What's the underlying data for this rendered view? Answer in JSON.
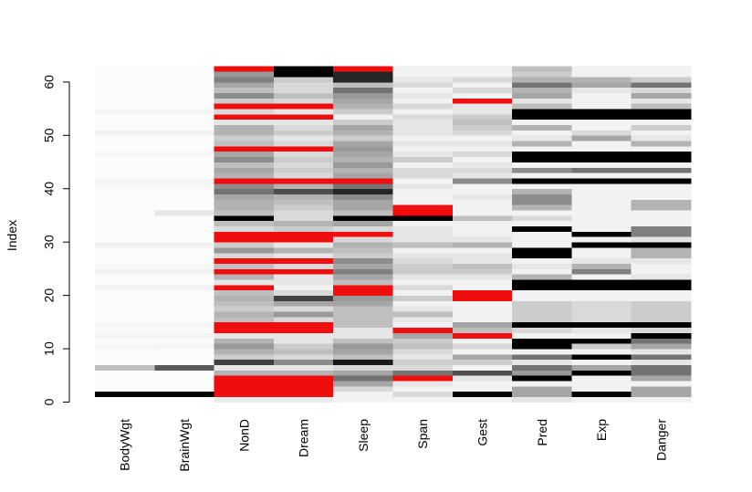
{
  "chart_data": {
    "type": "heatmap",
    "title": "",
    "xlabel": "",
    "ylabel": "Index",
    "ylim": [
      0,
      62
    ],
    "yticks": [
      0,
      10,
      20,
      30,
      40,
      50,
      60
    ],
    "variables": [
      "BodyWgt",
      "BrainWgt",
      "NonD",
      "Dream",
      "Sleep",
      "Span",
      "Gest",
      "Pred",
      "Exp",
      "Danger"
    ],
    "color_scale": {
      "low": "#ffffff",
      "high": "#000000",
      "missing": "#f00d0d",
      "description": "grayscale from low (white) to high (black); red marks missing values"
    },
    "rows": [
      [
        0.0,
        0.0,
        0.08,
        0.08,
        0.05,
        0.05,
        0.05,
        0.1,
        0.05,
        0.05
      ],
      [
        1.0,
        1.0,
        "NA",
        "NA",
        0.05,
        0.15,
        1.0,
        0.35,
        1.0,
        0.35
      ],
      [
        0.01,
        0.01,
        "NA",
        "NA",
        0.15,
        0.05,
        0.05,
        0.35,
        0.05,
        0.35
      ],
      [
        0.01,
        0.01,
        "NA",
        "NA",
        0.35,
        0.1,
        0.05,
        0.05,
        0.05,
        0.05
      ],
      [
        0.01,
        0.01,
        "NA",
        "NA",
        0.55,
        "NA",
        0.1,
        1.0,
        0.05,
        0.35
      ],
      [
        0.01,
        0.01,
        0.3,
        0.3,
        0.35,
        0.55,
        0.7,
        0.4,
        1.0,
        0.55
      ],
      [
        0.25,
        0.65,
        0.1,
        0.1,
        0.15,
        0.15,
        0.05,
        0.55,
        0.35,
        0.55
      ],
      [
        0.01,
        0.01,
        0.75,
        0.45,
        0.9,
        0.2,
        0.2,
        0.1,
        0.05,
        0.1
      ],
      [
        0.01,
        0.01,
        0.2,
        0.15,
        0.25,
        0.1,
        0.35,
        0.55,
        1.0,
        0.55
      ],
      [
        0.01,
        0.01,
        0.3,
        0.25,
        0.35,
        0.15,
        0.05,
        0.05,
        0.05,
        0.1
      ],
      [
        0.03,
        0.04,
        0.4,
        0.2,
        0.4,
        0.25,
        0.15,
        1.0,
        0.2,
        0.35
      ],
      [
        0.01,
        0.01,
        0.3,
        0.1,
        0.25,
        0.2,
        0.05,
        1.0,
        1.0,
        0.55
      ],
      [
        0.04,
        0.04,
        0.1,
        0.1,
        0.1,
        0.35,
        "NA",
        0.05,
        0.05,
        1.0
      ],
      [
        0.02,
        0.02,
        "NA",
        "NA",
        0.1,
        "NA",
        0.25,
        0.15,
        0.1,
        0.15
      ],
      [
        0.04,
        0.04,
        "NA",
        "NA",
        0.25,
        0.05,
        0.35,
        1.0,
        1.0,
        1.0
      ],
      [
        0.01,
        0.01,
        0.25,
        0.15,
        0.25,
        0.1,
        0.05,
        0.2,
        0.15,
        0.2
      ],
      [
        0.01,
        0.01,
        0.3,
        0.4,
        0.25,
        0.25,
        0.05,
        0.2,
        0.15,
        0.2
      ],
      [
        0.01,
        0.01,
        0.2,
        0.15,
        0.25,
        0.1,
        0.05,
        0.2,
        0.15,
        0.2
      ],
      [
        0.02,
        0.02,
        0.25,
        0.35,
        0.35,
        0.05,
        0.05,
        0.2,
        0.15,
        0.2
      ],
      [
        0.01,
        0.01,
        0.3,
        0.75,
        0.4,
        0.2,
        "NA",
        0.05,
        0.05,
        0.05
      ],
      [
        0.01,
        0.01,
        0.25,
        0.15,
        "NA",
        0.05,
        "NA",
        0.05,
        0.05,
        0.05
      ],
      [
        0.05,
        0.05,
        "NA",
        0.05,
        "NA",
        0.15,
        0.05,
        1.0,
        1.0,
        1.0
      ],
      [
        0.02,
        0.02,
        0.1,
        0.1,
        0.25,
        0.05,
        0.05,
        1.0,
        1.0,
        1.0
      ],
      [
        0.01,
        0.01,
        0.3,
        0.1,
        0.35,
        0.1,
        0.1,
        0.3,
        0.05,
        0.1
      ],
      [
        0.05,
        0.05,
        "NA",
        "NA",
        0.5,
        0.2,
        0.2,
        0.05,
        0.5,
        0.05
      ],
      [
        0.03,
        0.03,
        0.25,
        0.15,
        0.35,
        0.2,
        0.25,
        0.1,
        0.3,
        0.05
      ],
      [
        0.02,
        0.02,
        "NA",
        "NA",
        0.45,
        0.15,
        0.1,
        0.05,
        0.1,
        0.1
      ],
      [
        0.01,
        0.01,
        0.15,
        0.1,
        0.2,
        0.1,
        0.1,
        1.0,
        0.05,
        0.3
      ],
      [
        0.02,
        0.02,
        0.4,
        0.3,
        0.25,
        0.05,
        0.05,
        1.0,
        0.05,
        0.3
      ],
      [
        0.05,
        0.05,
        0.2,
        0.1,
        0.3,
        0.25,
        0.3,
        0.05,
        1.0,
        1.0
      ],
      [
        0.01,
        0.01,
        "NA",
        "NA",
        0.15,
        0.1,
        0.1,
        0.05,
        0.05,
        0.1
      ],
      [
        0.01,
        0.01,
        "NA",
        "NA",
        "NA",
        0.1,
        0.05,
        0.05,
        1.0,
        0.5
      ],
      [
        0.01,
        0.01,
        0.15,
        0.2,
        0.15,
        0.1,
        0.05,
        1.0,
        0.05,
        0.5
      ],
      [
        0.01,
        0.01,
        0.25,
        0.3,
        0.35,
        0.05,
        0.05,
        0.05,
        0.05,
        0.05
      ],
      [
        0.01,
        0.01,
        1.0,
        0.15,
        1.0,
        1.0,
        0.25,
        0.15,
        0.05,
        0.05
      ],
      [
        0.01,
        0.1,
        0.25,
        0.15,
        0.25,
        "NA",
        0.05,
        0.05,
        0.05,
        0.05
      ],
      [
        0.01,
        0.01,
        0.3,
        0.2,
        0.35,
        "NA",
        0.05,
        0.3,
        0.05,
        0.3
      ],
      [
        0.01,
        0.01,
        0.3,
        0.25,
        0.35,
        0.05,
        0.05,
        0.45,
        0.05,
        0.3
      ],
      [
        0.01,
        0.01,
        0.35,
        0.3,
        0.45,
        0.05,
        0.1,
        0.45,
        0.05,
        0.05
      ],
      [
        0.01,
        0.01,
        0.55,
        0.7,
        0.85,
        0.05,
        0.05,
        0.3,
        0.05,
        0.05
      ],
      [
        0.03,
        0.03,
        0.45,
        0.3,
        0.55,
        0.1,
        0.05,
        0.05,
        0.05,
        0.05
      ],
      [
        0.04,
        0.04,
        "NA",
        "NA",
        "NA",
        0.05,
        0.45,
        1.0,
        1.0,
        1.0
      ],
      [
        0.01,
        0.01,
        0.3,
        0.15,
        0.35,
        0.15,
        0.1,
        0.05,
        0.05,
        0.05
      ],
      [
        0.01,
        0.01,
        0.35,
        0.2,
        0.3,
        0.15,
        0.15,
        0.45,
        0.55,
        0.55
      ],
      [
        0.01,
        0.01,
        0.25,
        0.15,
        0.4,
        0.05,
        0.1,
        0.05,
        0.05,
        0.05
      ],
      [
        0.01,
        0.01,
        0.45,
        0.2,
        0.3,
        0.2,
        0.05,
        1.0,
        1.0,
        1.0
      ],
      [
        0.03,
        0.03,
        0.35,
        0.15,
        0.35,
        0.1,
        0.15,
        1.0,
        1.0,
        1.0
      ],
      [
        0.01,
        0.01,
        "NA",
        "NA",
        0.4,
        0.05,
        0.05,
        0.05,
        0.05,
        0.05
      ],
      [
        0.01,
        0.01,
        0.25,
        0.15,
        0.35,
        0.1,
        0.1,
        0.3,
        0.05,
        0.3
      ],
      [
        0.01,
        0.01,
        0.2,
        0.1,
        0.2,
        0.05,
        0.05,
        0.1,
        0.35,
        0.1
      ],
      [
        0.05,
        0.05,
        0.3,
        0.2,
        0.3,
        0.1,
        0.15,
        0.05,
        0.15,
        0.05
      ],
      [
        0.01,
        0.01,
        0.3,
        0.15,
        0.35,
        0.1,
        0.2,
        0.3,
        0.05,
        0.2
      ],
      [
        0.01,
        0.01,
        0.1,
        0.1,
        0.2,
        0.1,
        0.25,
        0.05,
        0.05,
        0.05
      ],
      [
        0.01,
        0.01,
        "NA",
        "NA",
        0.05,
        0.15,
        0.2,
        1.0,
        1.0,
        1.0
      ],
      [
        0.04,
        0.04,
        0.15,
        0.1,
        0.2,
        0.05,
        0.1,
        1.0,
        1.0,
        1.0
      ],
      [
        0.01,
        0.01,
        "NA",
        "NA",
        0.3,
        0.15,
        0.1,
        0.25,
        0.05,
        0.25
      ],
      [
        0.01,
        0.01,
        0.2,
        0.15,
        0.35,
        0.05,
        "NA",
        0.1,
        0.05,
        0.1
      ],
      [
        0.02,
        0.02,
        0.45,
        0.25,
        0.4,
        0.1,
        0.05,
        0.35,
        0.05,
        0.35
      ],
      [
        0.01,
        0.01,
        0.25,
        0.15,
        0.55,
        0.05,
        0.15,
        0.3,
        0.1,
        0.15
      ],
      [
        0.01,
        0.01,
        0.35,
        0.15,
        0.25,
        0.15,
        0.05,
        0.55,
        0.35,
        0.55
      ],
      [
        0.01,
        0.01,
        0.5,
        0.2,
        0.85,
        0.1,
        0.15,
        0.3,
        0.3,
        0.2
      ],
      [
        0.01,
        0.01,
        0.4,
        1.0,
        0.85,
        0.05,
        0.05,
        0.2,
        0.05,
        0.05
      ],
      [
        0.01,
        0.01,
        "NA",
        1.0,
        "NA",
        0.05,
        0.05,
        0.25,
        0.05,
        0.05
      ]
    ]
  }
}
